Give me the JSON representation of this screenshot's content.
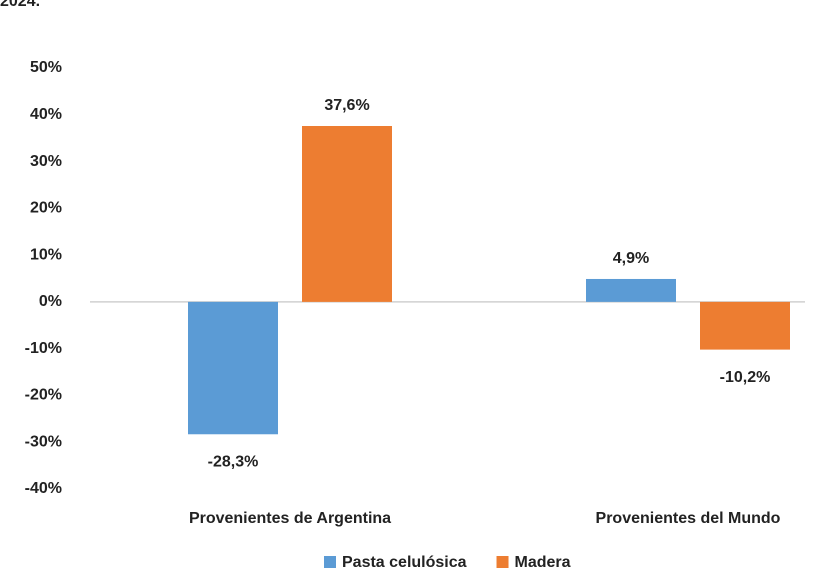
{
  "chart_data": {
    "type": "bar",
    "title": "2024.",
    "categories": [
      "Provenientes de Argentina",
      "Provenientes del Mundo"
    ],
    "series": [
      {
        "name": "Pasta celulósica",
        "color": "#5b9bd5",
        "values": [
          -28.3,
          4.9
        ],
        "value_labels": [
          "-28,3%",
          "4,9%"
        ]
      },
      {
        "name": "Madera",
        "color": "#ed7d31",
        "values": [
          37.6,
          -10.2
        ],
        "value_labels": [
          "37,6%",
          "-10,2%"
        ]
      }
    ],
    "ylim": [
      -40,
      50
    ],
    "yticks": [
      {
        "value": -40,
        "label": "-40%"
      },
      {
        "value": -30,
        "label": "-30%"
      },
      {
        "value": -20,
        "label": "-20%"
      },
      {
        "value": -10,
        "label": "-10%"
      },
      {
        "value": 0,
        "label": "0%"
      },
      {
        "value": 10,
        "label": "10%"
      },
      {
        "value": 20,
        "label": "20%"
      },
      {
        "value": 30,
        "label": "30%"
      },
      {
        "value": 40,
        "label": "40%"
      },
      {
        "value": 50,
        "label": "50%"
      }
    ],
    "grid": false,
    "legend": "bottom"
  }
}
